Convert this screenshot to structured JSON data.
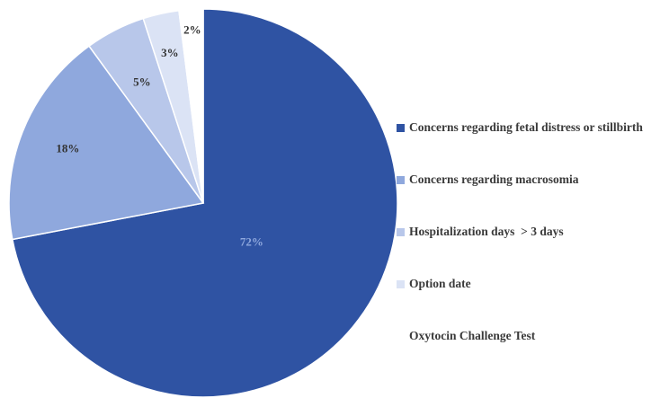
{
  "chart_data": {
    "type": "pie",
    "categories": [
      "Concerns regarding fetal distress or stillbirth",
      "Concerns regarding macrosomia",
      "Hospitalization days  > 3 days",
      "Option date",
      "Oxytocin Challenge Test"
    ],
    "values": [
      72,
      18,
      5,
      3,
      2
    ],
    "labels": [
      "72%",
      "18%",
      "5%",
      "3%",
      "2%"
    ],
    "colors": [
      "#2f53a3",
      "#8fa8dd",
      "#b8c7ea",
      "#dbe3f5",
      "#ffffff"
    ],
    "legend_swatch_colors": [
      "#2f53a3",
      "#8fa8dd",
      "#b8c7ea",
      "#dbe3f5",
      "#ffffff"
    ],
    "label_colors": [
      "#8fa8dd",
      "#333333",
      "#333333",
      "#333333",
      "#333333"
    ],
    "start_angle_deg": 0,
    "direction": "clockwise",
    "legend_position": "right",
    "title": ""
  }
}
